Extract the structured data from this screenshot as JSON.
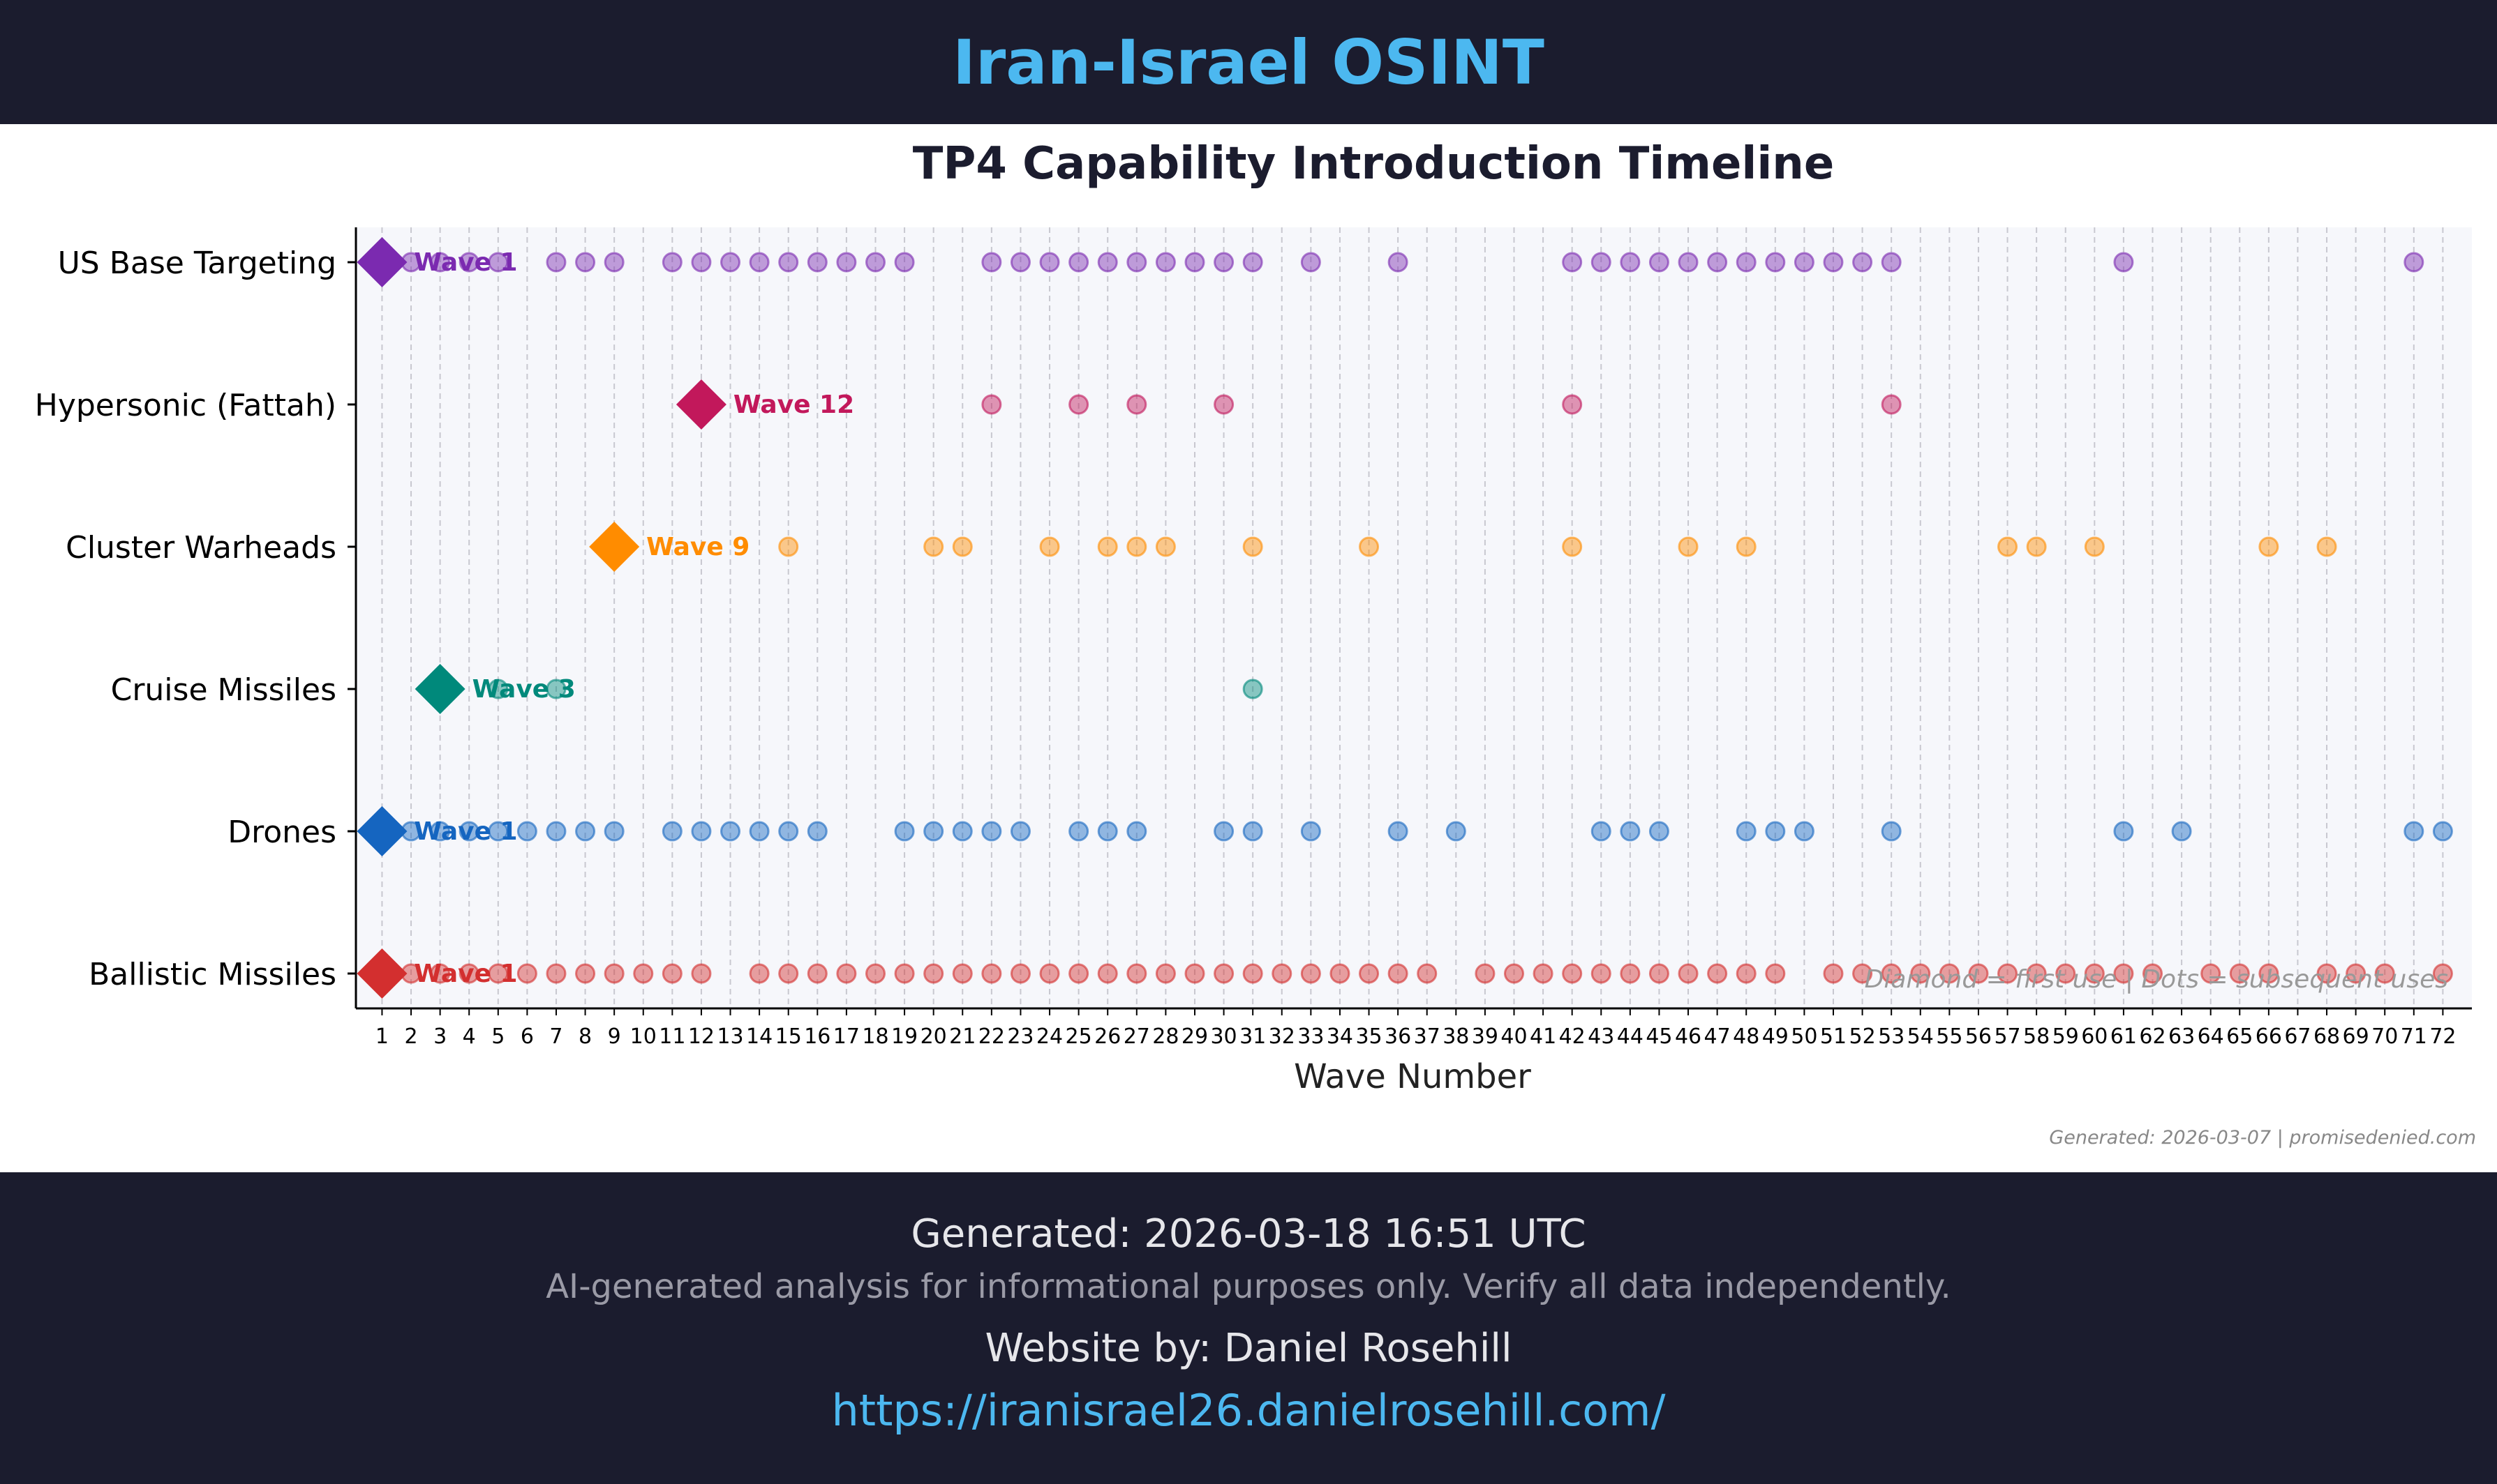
{
  "header": {
    "title": "Iran-Israel OSINT"
  },
  "chart_data": {
    "type": "scatter",
    "title": "TP4 Capability Introduction Timeline",
    "xlabel": "Wave Number",
    "ylabel": "",
    "xlim": [
      0.1,
      73
    ],
    "x_ticks": [
      1,
      2,
      3,
      4,
      5,
      6,
      7,
      8,
      9,
      10,
      11,
      12,
      13,
      14,
      15,
      16,
      17,
      18,
      19,
      20,
      21,
      22,
      23,
      24,
      25,
      26,
      27,
      28,
      29,
      30,
      31,
      32,
      33,
      34,
      35,
      36,
      37,
      38,
      39,
      40,
      41,
      42,
      43,
      44,
      45,
      46,
      47,
      48,
      49,
      50,
      51,
      52,
      53,
      54,
      55,
      56,
      57,
      58,
      59,
      60,
      61,
      62,
      63,
      64,
      65,
      66,
      67,
      68,
      69,
      70,
      71,
      72
    ],
    "grid": "vertical dashed",
    "legend_note": "Diamond = first use | Dots = subsequent uses",
    "watermark": "Generated: 2026-03-07 | promisedenied.com",
    "series": [
      {
        "name": "US Base Targeting",
        "color": "#7b2ab0",
        "first_use": 1,
        "first_label": "Wave 1",
        "uses": [
          2,
          3,
          4,
          5,
          7,
          8,
          9,
          11,
          12,
          13,
          14,
          15,
          16,
          17,
          18,
          19,
          22,
          23,
          24,
          25,
          26,
          27,
          28,
          29,
          30,
          31,
          33,
          36,
          42,
          43,
          44,
          45,
          46,
          47,
          48,
          49,
          50,
          51,
          52,
          53,
          61,
          71
        ]
      },
      {
        "name": "Hypersonic (Fattah)",
        "color": "#c2185b",
        "first_use": 12,
        "first_label": "Wave 12",
        "uses": [
          22,
          25,
          27,
          30,
          42,
          53
        ]
      },
      {
        "name": "Cluster Warheads",
        "color": "#ff8c00",
        "first_use": 9,
        "first_label": "Wave 9",
        "uses": [
          15,
          20,
          21,
          24,
          26,
          27,
          28,
          31,
          35,
          42,
          46,
          48,
          57,
          58,
          60,
          66,
          68
        ]
      },
      {
        "name": "Cruise Missiles",
        "color": "#00897b",
        "first_use": 3,
        "first_label": "Wave 3",
        "uses": [
          5,
          7,
          31
        ]
      },
      {
        "name": "Drones",
        "color": "#1565c0",
        "first_use": 1,
        "first_label": "Wave 1",
        "uses": [
          2,
          3,
          4,
          5,
          6,
          7,
          8,
          9,
          11,
          12,
          13,
          14,
          15,
          16,
          19,
          20,
          21,
          22,
          23,
          25,
          26,
          27,
          30,
          31,
          33,
          36,
          38,
          43,
          44,
          45,
          48,
          49,
          50,
          53,
          61,
          63,
          71,
          72
        ]
      },
      {
        "name": "Ballistic Missiles",
        "color": "#d32f2f",
        "first_use": 1,
        "first_label": "Wave 1",
        "uses": [
          2,
          3,
          4,
          5,
          6,
          7,
          8,
          9,
          10,
          11,
          12,
          14,
          15,
          16,
          17,
          18,
          19,
          20,
          21,
          22,
          23,
          24,
          25,
          26,
          27,
          28,
          29,
          30,
          31,
          32,
          33,
          34,
          35,
          36,
          37,
          39,
          40,
          41,
          42,
          43,
          44,
          45,
          46,
          47,
          48,
          49,
          51,
          52,
          53,
          54,
          55,
          56,
          57,
          58,
          59,
          60,
          61,
          62,
          64,
          65,
          66,
          68,
          69,
          70,
          72
        ]
      }
    ]
  },
  "footer": {
    "generated": "Generated: 2026-03-18 16:51 UTC",
    "disclaimer": "AI-generated analysis for informational purposes only. Verify all data independently.",
    "website_by": "Website by: Daniel Rosehill",
    "url": "https://iranisrael26.danielrosehill.com/"
  }
}
